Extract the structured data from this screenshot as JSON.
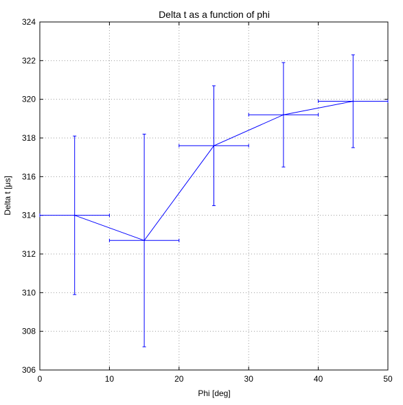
{
  "chart_data": {
    "type": "line",
    "title": "Delta t as a function of phi",
    "xlabel": "Phi [deg]",
    "ylabel": "Delta t [μs]",
    "xlim": [
      0,
      50
    ],
    "ylim": [
      306,
      324
    ],
    "xticks": [
      "0",
      "10",
      "20",
      "30",
      "40",
      "50"
    ],
    "yticks": [
      "306",
      "308",
      "310",
      "312",
      "314",
      "316",
      "318",
      "320",
      "322",
      "324"
    ],
    "grid": true,
    "legend": "none",
    "series": [
      {
        "x": [
          5,
          15,
          25,
          35,
          45
        ],
        "y": [
          314.0,
          312.7,
          317.6,
          319.2,
          319.9
        ],
        "x_err": [
          5,
          5,
          5,
          5,
          5
        ],
        "y_err_low": [
          4.1,
          5.5,
          3.1,
          2.7,
          2.4
        ],
        "y_err_high": [
          4.1,
          5.5,
          3.1,
          2.7,
          2.4
        ],
        "color": "#0000ff"
      }
    ]
  }
}
